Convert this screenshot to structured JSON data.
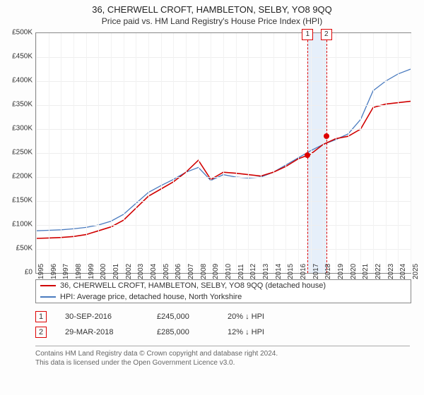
{
  "title": "36, CHERWELL CROFT, HAMBLETON, SELBY, YO8 9QQ",
  "subtitle": "Price paid vs. HM Land Registry's House Price Index (HPI)",
  "chart": {
    "type": "line",
    "x_years": [
      1995,
      1996,
      1997,
      1998,
      1999,
      2000,
      2001,
      2002,
      2003,
      2004,
      2005,
      2006,
      2007,
      2008,
      2009,
      2010,
      2011,
      2012,
      2013,
      2014,
      2015,
      2016,
      2017,
      2018,
      2019,
      2020,
      2021,
      2022,
      2023,
      2024,
      2025
    ],
    "ylim": [
      0,
      500000
    ],
    "ytick_step": 50000,
    "ytick_labels": [
      "£0",
      "£50K",
      "£100K",
      "£150K",
      "£200K",
      "£250K",
      "£300K",
      "£350K",
      "£400K",
      "£450K",
      "£500K"
    ],
    "grid_color": "#eeeeee",
    "border_color": "#888888",
    "series": [
      {
        "name": "hpi",
        "color": "#4a7bbf",
        "width": 1.3,
        "values": [
          88,
          89,
          90,
          92,
          95,
          100,
          108,
          122,
          145,
          168,
          182,
          195,
          210,
          220,
          193,
          205,
          200,
          198,
          200,
          210,
          225,
          240,
          255,
          268,
          278,
          290,
          320,
          380,
          400,
          415,
          425
        ]
      },
      {
        "name": "property",
        "color": "#d00000",
        "width": 1.6,
        "values": [
          72,
          73,
          74,
          76,
          80,
          88,
          96,
          110,
          135,
          160,
          175,
          190,
          210,
          235,
          195,
          210,
          208,
          205,
          202,
          210,
          222,
          238,
          248,
          268,
          280,
          285,
          300,
          345,
          352,
          355,
          358
        ]
      }
    ],
    "sales": [
      {
        "idx": 1,
        "year_frac": 2016.75,
        "price": 245000,
        "date": "30-SEP-2016",
        "diff": "20% ↓ HPI"
      },
      {
        "idx": 2,
        "year_frac": 2018.25,
        "price": 285000,
        "date": "29-MAR-2018",
        "diff": "12% ↓ HPI"
      }
    ],
    "sale_band_color": "#e6effa"
  },
  "legend": {
    "items": [
      {
        "color": "#d00000",
        "label": "36, CHERWELL CROFT, HAMBLETON, SELBY, YO8 9QQ (detached house)"
      },
      {
        "color": "#4a7bbf",
        "label": "HPI: Average price, detached house, North Yorkshire"
      }
    ]
  },
  "sales_table": [
    {
      "idx": "1",
      "date": "30-SEP-2016",
      "price": "£245,000",
      "diff": "20% ↓ HPI"
    },
    {
      "idx": "2",
      "date": "29-MAR-2018",
      "price": "£285,000",
      "diff": "12% ↓ HPI"
    }
  ],
  "footer": {
    "line1": "Contains HM Land Registry data © Crown copyright and database right 2024.",
    "line2": "This data is licensed under the Open Government Licence v3.0."
  }
}
